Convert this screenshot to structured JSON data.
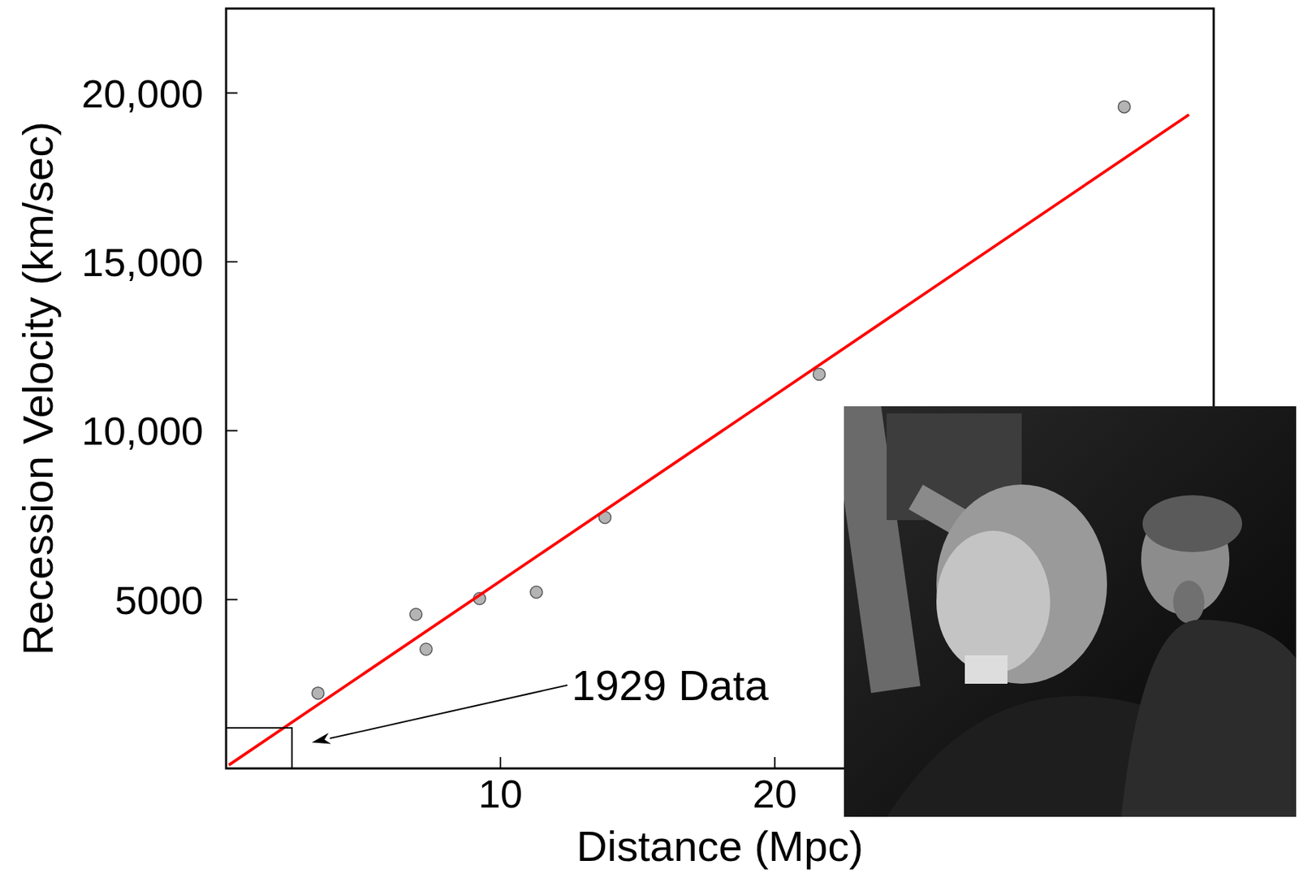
{
  "chart_data": {
    "type": "scatter",
    "x_label": "Distance (Mpc)",
    "y_label": "Recession Velocity (km/sec)",
    "xlim": [
      0,
      36
    ],
    "ylim": [
      0,
      22500
    ],
    "xticks": [
      10,
      20
    ],
    "yticks": [
      5000,
      {
        "value": 10000,
        "label": "10,000"
      },
      {
        "value": 15000,
        "label": "15,000"
      },
      {
        "value": 20000,
        "label": "20,000"
      }
    ],
    "grid": false,
    "series": [
      {
        "type": "scatter",
        "marker": "circle",
        "color": "#b4b4b4",
        "x": [
          3.35,
          6.92,
          7.29,
          9.24,
          11.31,
          13.81,
          21.62,
          32.74
        ],
        "values": [
          2230,
          4560,
          3530,
          5030,
          5220,
          7430,
          11670,
          19590
        ]
      },
      {
        "type": "line",
        "line_style": "solid",
        "color": "#ff0000",
        "x": [
          0.1,
          35.1
        ],
        "values": [
          100,
          19360
        ]
      }
    ],
    "annotations": [
      {
        "text": "1929 Data",
        "box_x": [
          0,
          2.4
        ],
        "box_y": [
          0,
          1200
        ]
      }
    ]
  }
}
